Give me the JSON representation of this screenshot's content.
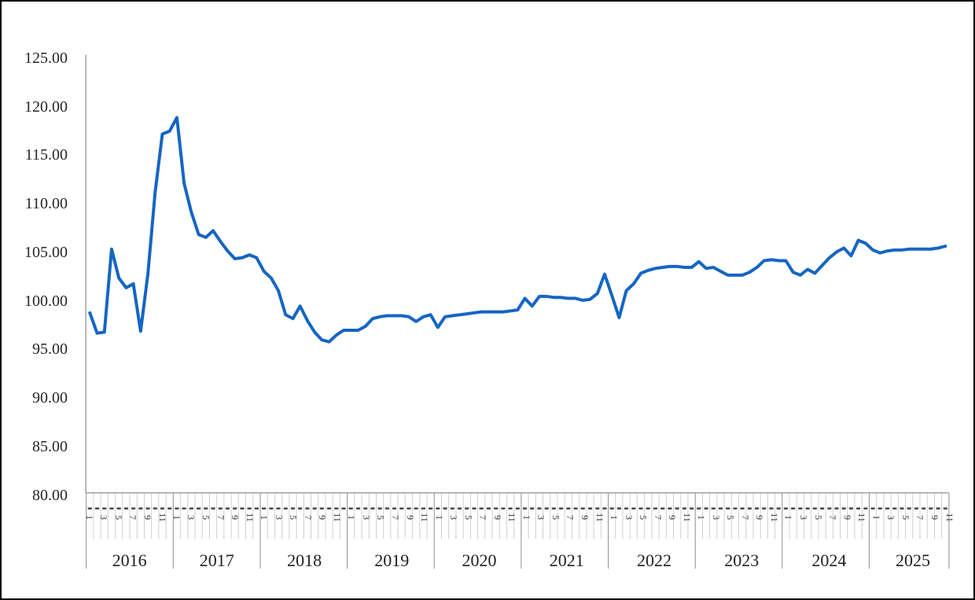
{
  "chart_data": {
    "type": "line",
    "title": "",
    "xlabel": "",
    "ylabel": "",
    "legend": "none",
    "grid": "off",
    "ylim": [
      80,
      125
    ],
    "y_ticks": [
      "125.00",
      "120.00",
      "115.00",
      "110.00",
      "105.00",
      "100.00",
      "95.00",
      "90.00",
      "85.00",
      "80.00"
    ],
    "month_tick_labels": [
      "1",
      "3",
      "5",
      "7",
      "9",
      "11"
    ],
    "x_unit": "month",
    "years": [
      {
        "label": "2016",
        "values": [
          98.6,
          96.5,
          96.6,
          105.2,
          102.2,
          101.2,
          101.6,
          96.7,
          102.6,
          111.1,
          117.1,
          117.4
        ]
      },
      {
        "label": "2017",
        "values": [
          118.8,
          112.0,
          109.0,
          106.7,
          106.4,
          107.1,
          106.0,
          105.0,
          104.2,
          104.3,
          104.6,
          104.3
        ]
      },
      {
        "label": "2018",
        "values": [
          102.9,
          102.2,
          100.9,
          98.4,
          98.0,
          99.3,
          97.8,
          96.6,
          95.8,
          95.6,
          96.3,
          96.8
        ]
      },
      {
        "label": "2019",
        "values": [
          96.8,
          96.8,
          97.2,
          98.0,
          98.2,
          98.3,
          98.3,
          98.3,
          98.2,
          97.7,
          98.2,
          98.4
        ]
      },
      {
        "label": "2020",
        "values": [
          97.1,
          98.2,
          98.3,
          98.4,
          98.5,
          98.6,
          98.7,
          98.7,
          98.7,
          98.7,
          98.8,
          98.9
        ]
      },
      {
        "label": "2021",
        "values": [
          100.1,
          99.3,
          100.3,
          100.3,
          100.2,
          100.2,
          100.1,
          100.1,
          99.9,
          100.0,
          100.6,
          102.6
        ]
      },
      {
        "label": "2022",
        "values": [
          100.4,
          98.1,
          100.9,
          101.6,
          102.7,
          103.0,
          103.2,
          103.3,
          103.4,
          103.4,
          103.3,
          103.3
        ]
      },
      {
        "label": "2023",
        "values": [
          103.9,
          103.2,
          103.3,
          102.9,
          102.5,
          102.5,
          102.5,
          102.8,
          103.3,
          104.0,
          104.1,
          104.0
        ]
      },
      {
        "label": "2024",
        "values": [
          104.0,
          102.8,
          102.5,
          103.1,
          102.7,
          103.5,
          104.3,
          104.9,
          105.3,
          104.5,
          106.1,
          105.8
        ]
      },
      {
        "label": "2025",
        "values": [
          105.1,
          104.8,
          105.0,
          105.1,
          105.1,
          105.2,
          105.2,
          105.2,
          105.2,
          105.3,
          105.5
        ]
      }
    ],
    "colors": {
      "line": "#1565c3",
      "axis": "#a6a6a6",
      "month_grid": "#cfcfcf",
      "year_separator": "#8c8c8c",
      "tick_dash": "#404040",
      "text": "#262626"
    }
  }
}
